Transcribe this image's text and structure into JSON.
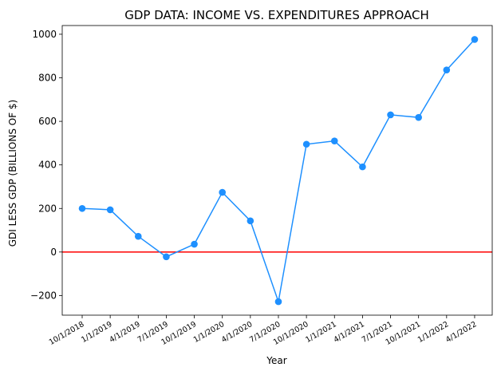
{
  "chart_data": {
    "type": "line",
    "title": "GDP DATA: INCOME VS. EXPENDITURES APPROACH",
    "xlabel": "Year",
    "ylabel": "GDI LESS GDP (BILLIONS OF $)",
    "categories": [
      "10/1/2018",
      "1/1/2019",
      "4/1/2019",
      "7/1/2019",
      "10/1/2019",
      "1/1/2020",
      "4/1/2020",
      "7/1/2020",
      "10/1/2020",
      "1/1/2021",
      "4/1/2021",
      "7/1/2021",
      "10/1/2021",
      "1/1/2022",
      "4/1/2022"
    ],
    "series": [
      {
        "values": [
          200,
          194,
          72,
          -22,
          36,
          274,
          143,
          -228,
          495,
          510,
          391,
          630,
          618,
          836,
          976
        ]
      }
    ],
    "yticks": [
      -200,
      0,
      200,
      400,
      600,
      800,
      1000
    ],
    "ytick_labels": [
      "−200",
      "0",
      "200",
      "400",
      "600",
      "800",
      "1000"
    ],
    "ylim": [
      -290,
      1040
    ],
    "reference_line": {
      "y": 0,
      "color": "#ff0000"
    },
    "line_color": "#1e90ff",
    "grid": false,
    "legend": "none"
  }
}
